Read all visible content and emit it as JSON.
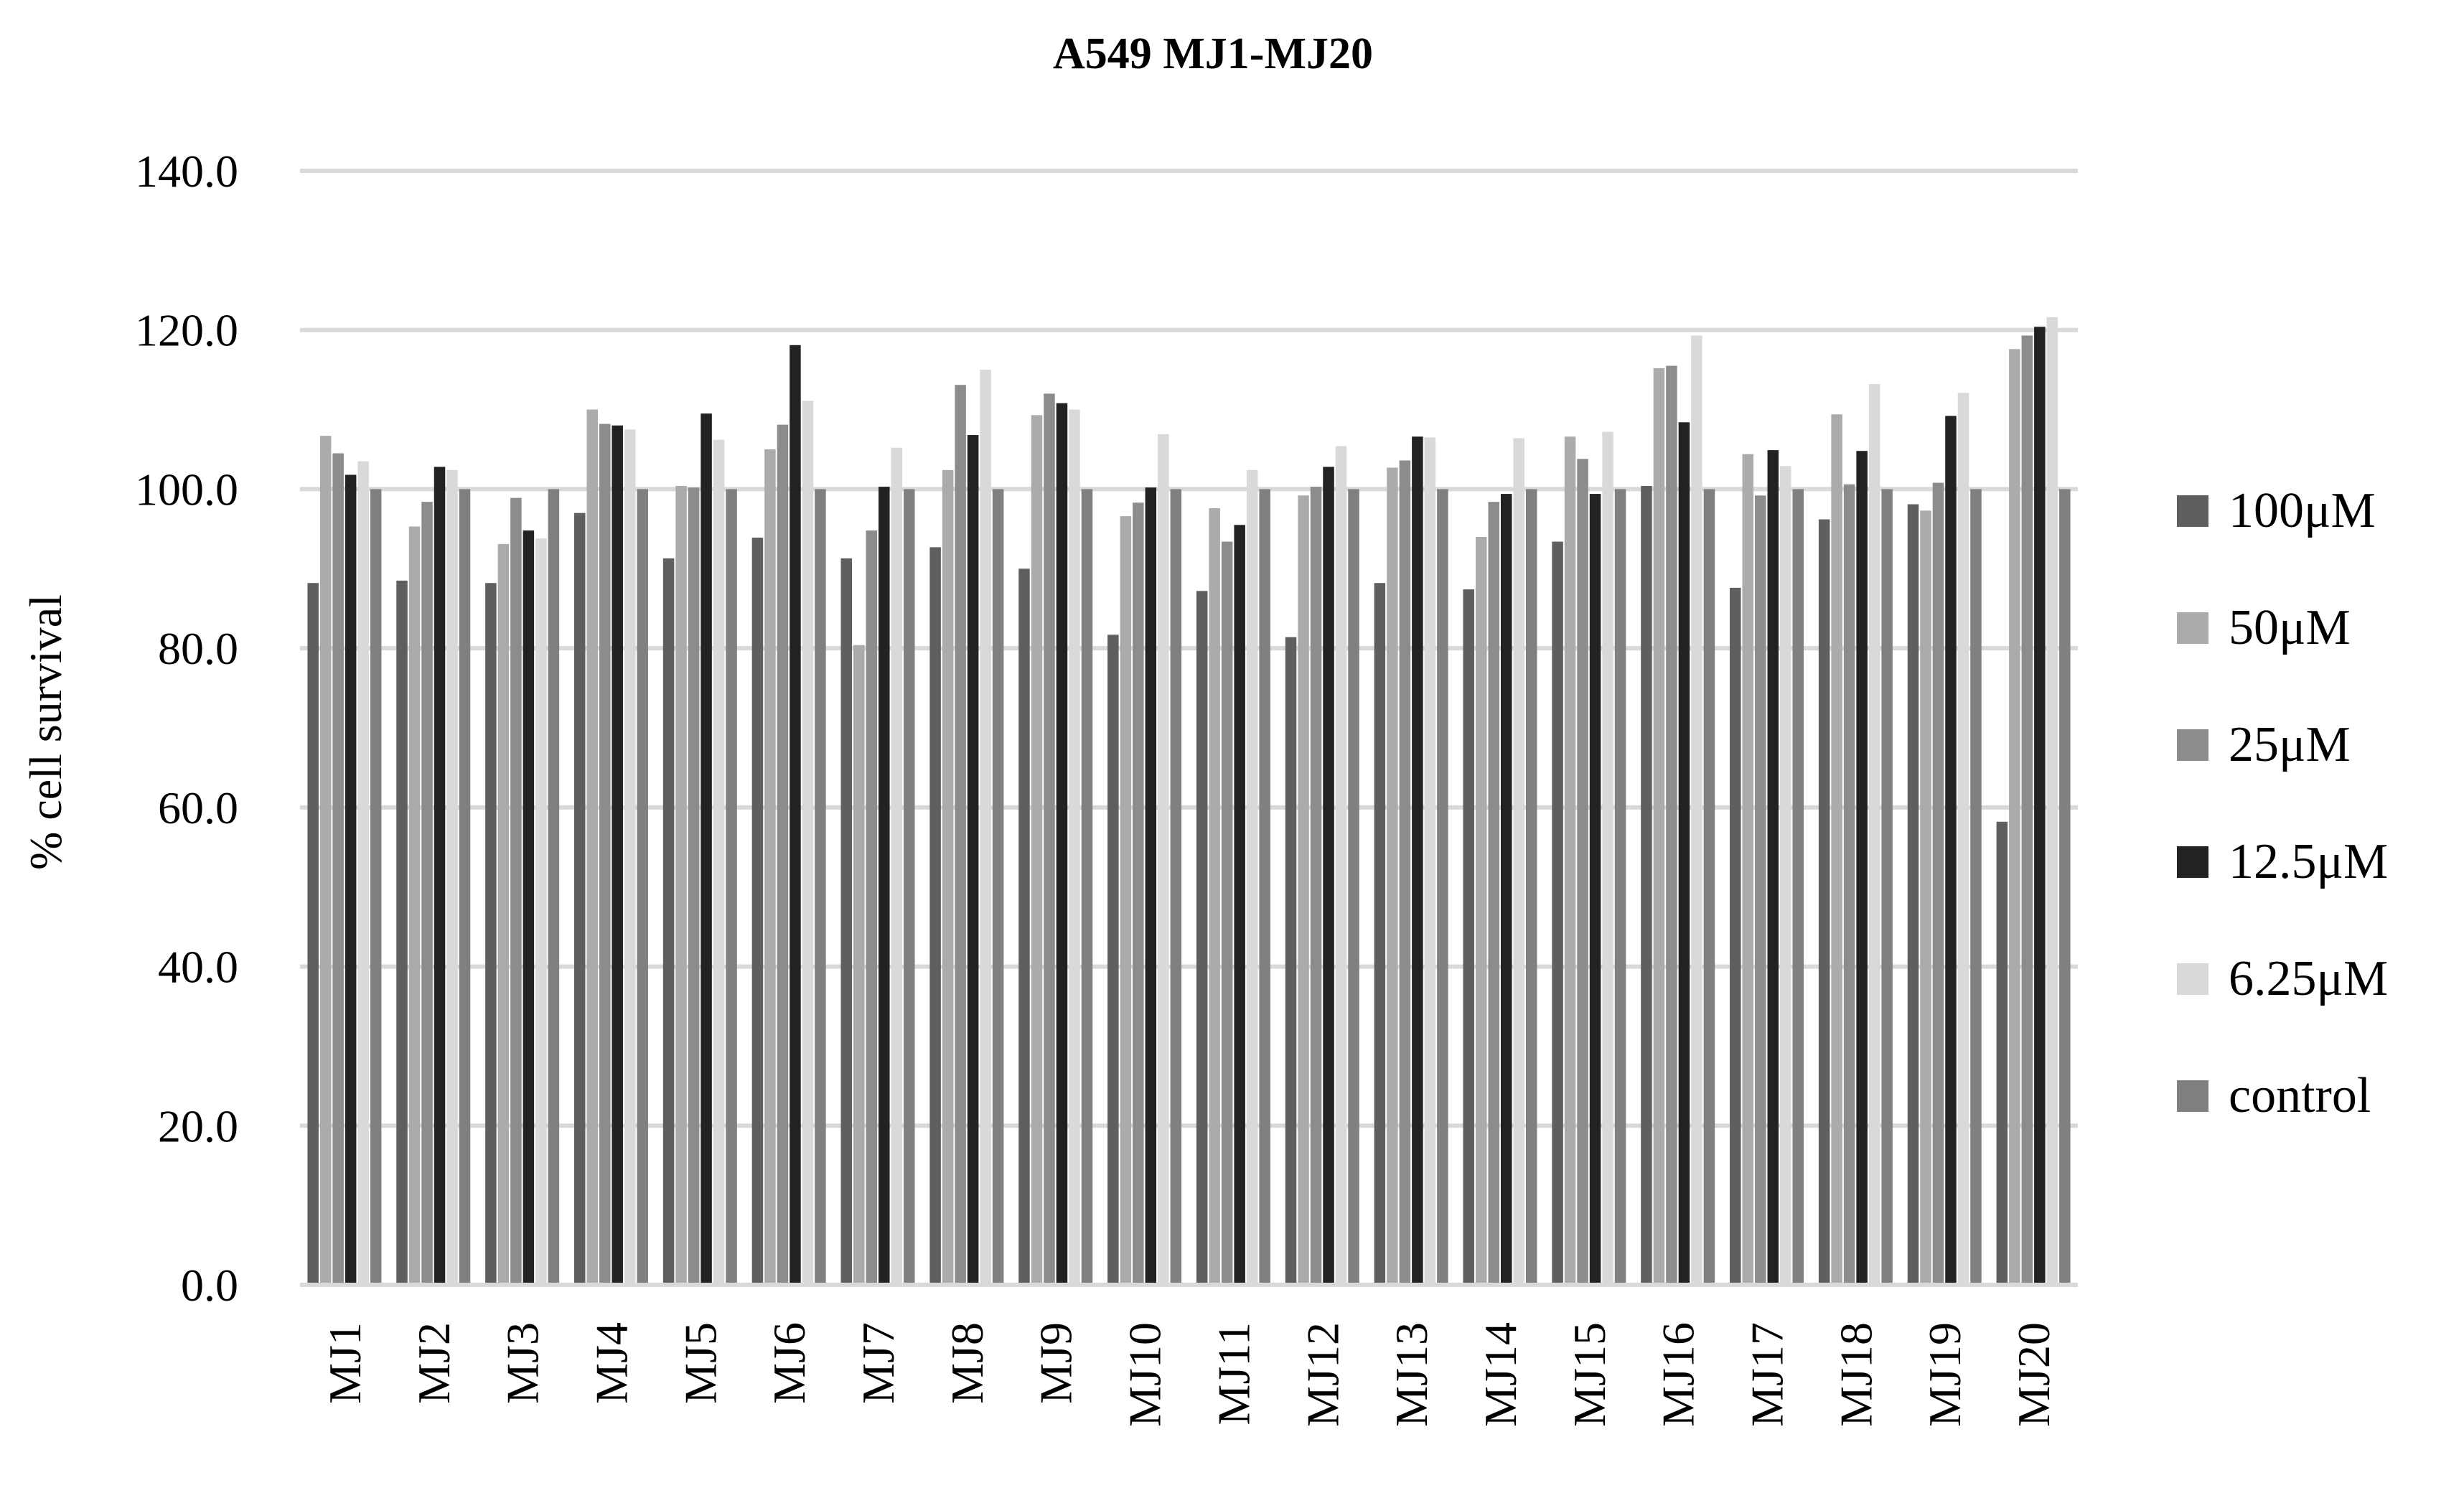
{
  "chart_data": {
    "type": "bar",
    "title": "A549 MJ1-MJ20",
    "ylabel": "% cell survival",
    "xlabel": "",
    "ylim": [
      0,
      140
    ],
    "yticks": [
      "0.0",
      "20.0",
      "40.0",
      "60.0",
      "80.0",
      "100.0",
      "120.0",
      "140.0"
    ],
    "grid": true,
    "legend_position": "right",
    "categories": [
      "MJ1",
      "MJ2",
      "MJ3",
      "MJ4",
      "MJ5",
      "MJ6",
      "MJ7",
      "MJ8",
      "MJ9",
      "MJ10",
      "MJ11",
      "MJ12",
      "MJ13",
      "MJ14",
      "MJ15",
      "MJ16",
      "MJ17",
      "MJ18",
      "MJ19",
      "MJ20"
    ],
    "series": [
      {
        "name": "100μM",
        "color": "#5f5f5f",
        "values": [
          88.2,
          88.5,
          88.2,
          97.0,
          91.3,
          93.9,
          91.3,
          92.7,
          90.0,
          81.7,
          87.2,
          81.4,
          88.2,
          87.4,
          93.4,
          100.4,
          87.6,
          96.2,
          98.1,
          58.2
        ]
      },
      {
        "name": "50μM",
        "color": "#ababab",
        "values": [
          106.7,
          95.3,
          93.1,
          110.0,
          100.4,
          105.0,
          80.4,
          102.4,
          109.3,
          96.6,
          97.6,
          99.2,
          102.7,
          94.0,
          106.6,
          115.2,
          104.4,
          109.4,
          97.3,
          117.6
        ]
      },
      {
        "name": "25μM",
        "color": "#8c8c8c",
        "values": [
          104.5,
          98.4,
          98.9,
          108.2,
          100.2,
          108.1,
          94.8,
          113.1,
          112.0,
          98.3,
          93.4,
          100.3,
          103.6,
          98.4,
          103.8,
          115.5,
          99.2,
          100.6,
          100.8,
          119.3
        ]
      },
      {
        "name": "12.5μM",
        "color": "#222222",
        "values": [
          101.8,
          102.8,
          94.8,
          108.0,
          109.5,
          118.1,
          100.3,
          106.8,
          110.8,
          100.2,
          95.5,
          102.8,
          106.6,
          99.4,
          99.4,
          108.4,
          104.9,
          104.8,
          109.2,
          120.4
        ]
      },
      {
        "name": "6.25μM",
        "color": "#d9d9d9",
        "values": [
          103.5,
          102.4,
          93.8,
          107.5,
          106.2,
          111.1,
          105.2,
          115.0,
          110.0,
          106.9,
          102.4,
          105.4,
          106.5,
          106.4,
          107.2,
          119.3,
          102.9,
          113.2,
          112.1,
          121.6
        ]
      },
      {
        "name": "control",
        "color": "#808080",
        "values": [
          100,
          100,
          100,
          100,
          100,
          100,
          100,
          100,
          100,
          100,
          100,
          100,
          100,
          100,
          100,
          100,
          100,
          100,
          100,
          100
        ]
      }
    ]
  }
}
